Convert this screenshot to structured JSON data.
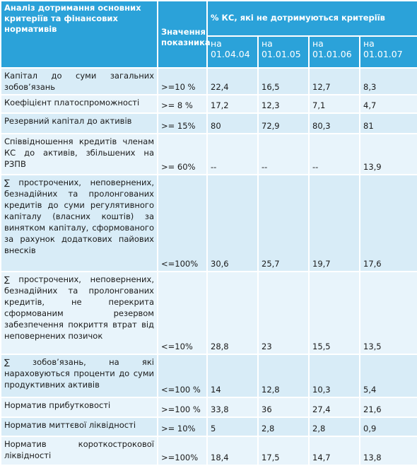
{
  "table": {
    "header": {
      "criteria": "Аналіз дотримання основних критеріїв та фінансових нормативів",
      "indicator": "Значення показника",
      "group": "% КС, які не дотримуються критеріїв",
      "dates": [
        "на 01.04.04",
        "на 01.01.05",
        "на 01.01.06",
        "на 01.01.07"
      ]
    },
    "rows": [
      [
        "Капітал до суми загальних зобов’язань",
        ">=10 %",
        "22,4",
        "16,5",
        "12,7",
        "8,3"
      ],
      [
        "Коефіцієнт платоспроможності",
        ">= 8 %",
        "17,2",
        "12,3",
        "7,1",
        "4,7"
      ],
      [
        "Резервний капітал до активів",
        ">= 15%",
        "80",
        "72,9",
        "80,3",
        "81"
      ],
      [
        "Співвідношення кредитів членам КС до активів, збільшених на РЗПВ",
        ">= 60%",
        "--",
        "--",
        "--",
        "13,9"
      ],
      [
        "∑ прострочених, неповернених, безнадійних та пролонгованих кредитів до суми регулятивного капіталу (власних коштів) за винятком капіталу, сформованого за рахунок додаткових пайових внесків",
        "<=100%",
        "30,6",
        "25,7",
        "19,7",
        "17,6"
      ],
      [
        "∑ прострочених, неповернених, безнадійних та пролонгованих кредитів, не перекрита сформованим резервом забезпечення покриття втрат від неповернених позичок",
        "<=10%",
        "28,8",
        "23",
        "15,5",
        "13,5"
      ],
      [
        "∑ зобов’язань, на які нараховуються проценти до суми продуктивних активів",
        "<=100 %",
        "14",
        "12,8",
        "10,3",
        "5,4"
      ],
      [
        "Норматив прибутковості",
        ">=100 %",
        "33,8",
        "36",
        "27,4",
        "21,6"
      ],
      [
        "Норматив миттєвої ліквідності",
        ">= 10%",
        "5",
        "2,8",
        "2,8",
        "0,9"
      ],
      [
        "Норматив короткострокової ліквідності",
        ">=100%",
        "18,4",
        "17,5",
        "14,7",
        "13,8"
      ]
    ]
  }
}
